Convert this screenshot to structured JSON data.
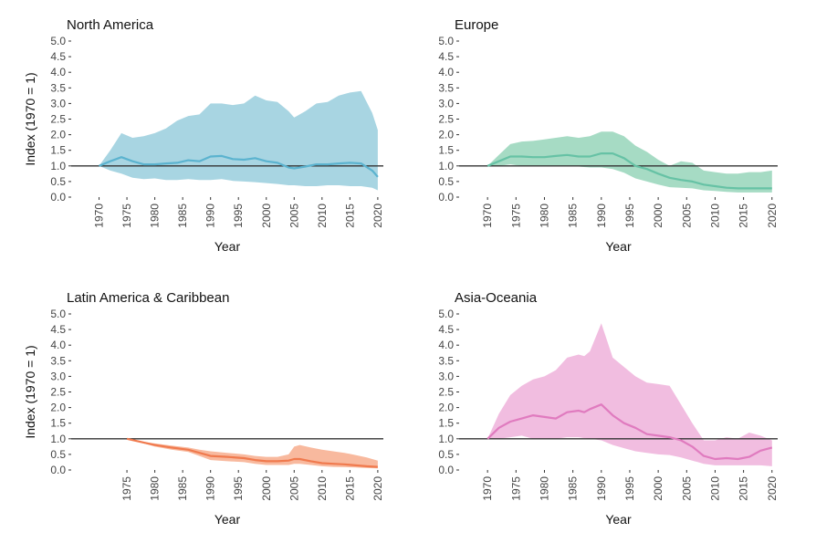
{
  "chart_data": [
    {
      "type": "area",
      "title": "North America",
      "xlabel": "Year",
      "ylabel": "Index (1970 = 1)",
      "xlim": [
        1965,
        2021
      ],
      "ylim": [
        0,
        5
      ],
      "xticks": [
        "1970",
        "1975",
        "1980",
        "1985",
        "1990",
        "1995",
        "2000",
        "2005",
        "2010",
        "2015",
        "2020"
      ],
      "yticks": [
        "0.0",
        "0.5",
        "1.0",
        "1.5",
        "2.0",
        "2.5",
        "3.0",
        "3.5",
        "4.0",
        "4.5",
        "5.0"
      ],
      "reference_line": 1,
      "color": "#5bb3cf",
      "band_color": "#a8d5e2",
      "x": [
        1970,
        1972,
        1974,
        1976,
        1978,
        1980,
        1982,
        1984,
        1986,
        1988,
        1990,
        1992,
        1994,
        1996,
        1998,
        2000,
        2002,
        2004,
        2005,
        2007,
        2009,
        2011,
        2013,
        2015,
        2017,
        2019,
        2020
      ],
      "values": [
        1.0,
        1.15,
        1.28,
        1.15,
        1.05,
        1.05,
        1.08,
        1.1,
        1.18,
        1.15,
        1.3,
        1.32,
        1.22,
        1.2,
        1.25,
        1.15,
        1.1,
        0.95,
        0.92,
        0.98,
        1.05,
        1.05,
        1.08,
        1.1,
        1.08,
        0.85,
        0.65
      ],
      "upper": [
        1.0,
        1.5,
        2.05,
        1.9,
        1.95,
        2.05,
        2.2,
        2.45,
        2.6,
        2.65,
        3.0,
        3.0,
        2.95,
        3.0,
        3.25,
        3.1,
        3.05,
        2.75,
        2.55,
        2.75,
        3.0,
        3.05,
        3.25,
        3.35,
        3.4,
        2.7,
        2.15
      ],
      "lower": [
        1.0,
        0.85,
        0.75,
        0.62,
        0.58,
        0.6,
        0.55,
        0.55,
        0.58,
        0.55,
        0.55,
        0.58,
        0.52,
        0.5,
        0.48,
        0.45,
        0.42,
        0.38,
        0.38,
        0.35,
        0.35,
        0.38,
        0.38,
        0.35,
        0.35,
        0.3,
        0.22
      ]
    },
    {
      "type": "area",
      "title": "Europe",
      "xlabel": "Year",
      "ylabel": "",
      "xlim": [
        1965,
        2021
      ],
      "ylim": [
        0,
        5
      ],
      "xticks": [
        "1970",
        "1975",
        "1980",
        "1985",
        "1990",
        "1995",
        "2000",
        "2005",
        "2010",
        "2015",
        "2020"
      ],
      "yticks": [
        "0.0",
        "0.5",
        "1.0",
        "1.5",
        "2.0",
        "2.5",
        "3.0",
        "3.5",
        "4.0",
        "4.5",
        "5.0"
      ],
      "reference_line": 1,
      "color": "#66c2a5",
      "band_color": "#a6dbc4",
      "x": [
        1970,
        1972,
        1974,
        1976,
        1978,
        1980,
        1982,
        1984,
        1986,
        1988,
        1990,
        1992,
        1994,
        1996,
        1998,
        2000,
        2002,
        2004,
        2006,
        2008,
        2010,
        2012,
        2014,
        2016,
        2018,
        2020
      ],
      "values": [
        1.0,
        1.15,
        1.3,
        1.3,
        1.28,
        1.28,
        1.32,
        1.35,
        1.3,
        1.3,
        1.4,
        1.4,
        1.25,
        1.0,
        0.9,
        0.75,
        0.62,
        0.55,
        0.5,
        0.4,
        0.35,
        0.3,
        0.28,
        0.28,
        0.28,
        0.28
      ],
      "upper": [
        1.0,
        1.35,
        1.7,
        1.78,
        1.8,
        1.85,
        1.9,
        1.95,
        1.9,
        1.95,
        2.1,
        2.1,
        1.95,
        1.65,
        1.45,
        1.2,
        1.0,
        1.15,
        1.1,
        0.85,
        0.8,
        0.75,
        0.75,
        0.8,
        0.8,
        0.85
      ],
      "lower": [
        1.0,
        1.0,
        1.05,
        1.0,
        0.98,
        0.98,
        1.0,
        1.0,
        0.98,
        0.95,
        0.95,
        0.9,
        0.78,
        0.6,
        0.5,
        0.4,
        0.32,
        0.3,
        0.28,
        0.22,
        0.2,
        0.17,
        0.15,
        0.15,
        0.15,
        0.15
      ]
    },
    {
      "type": "area",
      "title": "Latin America & Caribbean",
      "xlabel": "Year",
      "ylabel": "Index (1970 = 1)",
      "xlim": [
        1965,
        2021
      ],
      "ylim": [
        0,
        5
      ],
      "xticks": [
        "1975",
        "1980",
        "1985",
        "1990",
        "1995",
        "2000",
        "2005",
        "2010",
        "2015",
        "2020"
      ],
      "yticks": [
        "0.0",
        "0.5",
        "1.0",
        "1.5",
        "2.0",
        "2.5",
        "3.0",
        "3.5",
        "4.0",
        "4.5",
        "5.0"
      ],
      "reference_line": 1,
      "color": "#f07a4e",
      "band_color": "#f8b99e",
      "x": [
        1975,
        1978,
        1980,
        1983,
        1986,
        1988,
        1990,
        1993,
        1996,
        1998,
        2000,
        2002,
        2004,
        2005,
        2006,
        2008,
        2010,
        2012,
        2014,
        2016,
        2018,
        2020
      ],
      "values": [
        1.0,
        0.88,
        0.8,
        0.72,
        0.65,
        0.55,
        0.45,
        0.42,
        0.38,
        0.32,
        0.28,
        0.28,
        0.3,
        0.35,
        0.35,
        0.28,
        0.22,
        0.2,
        0.18,
        0.15,
        0.12,
        0.1
      ],
      "upper": [
        1.0,
        0.9,
        0.85,
        0.78,
        0.72,
        0.65,
        0.6,
        0.55,
        0.5,
        0.45,
        0.42,
        0.42,
        0.5,
        0.75,
        0.8,
        0.72,
        0.65,
        0.6,
        0.55,
        0.48,
        0.4,
        0.3
      ],
      "lower": [
        1.0,
        0.85,
        0.75,
        0.65,
        0.58,
        0.45,
        0.32,
        0.28,
        0.25,
        0.2,
        0.16,
        0.16,
        0.16,
        0.2,
        0.2,
        0.16,
        0.12,
        0.1,
        0.09,
        0.08,
        0.06,
        0.05
      ]
    },
    {
      "type": "area",
      "title": "Asia-Oceania",
      "xlabel": "Year",
      "ylabel": "",
      "xlim": [
        1965,
        2021
      ],
      "ylim": [
        0,
        5
      ],
      "xticks": [
        "1970",
        "1975",
        "1980",
        "1985",
        "1990",
        "1995",
        "2000",
        "2005",
        "2010",
        "2015",
        "2020"
      ],
      "yticks": [
        "0.0",
        "0.5",
        "1.0",
        "1.5",
        "2.0",
        "2.5",
        "3.0",
        "3.5",
        "4.0",
        "4.5",
        "5.0"
      ],
      "reference_line": 1,
      "color": "#e07bbf",
      "band_color": "#f1bde0",
      "x": [
        1970,
        1972,
        1974,
        1976,
        1978,
        1980,
        1982,
        1984,
        1986,
        1987,
        1988,
        1990,
        1992,
        1994,
        1996,
        1998,
        2000,
        2002,
        2004,
        2006,
        2008,
        2010,
        2012,
        2014,
        2016,
        2018,
        2020
      ],
      "values": [
        1.0,
        1.35,
        1.55,
        1.65,
        1.75,
        1.7,
        1.65,
        1.85,
        1.9,
        1.85,
        1.95,
        2.1,
        1.75,
        1.5,
        1.35,
        1.15,
        1.1,
        1.05,
        0.95,
        0.75,
        0.45,
        0.35,
        0.38,
        0.35,
        0.42,
        0.62,
        0.72
      ],
      "upper": [
        1.0,
        1.8,
        2.4,
        2.7,
        2.9,
        3.0,
        3.2,
        3.6,
        3.7,
        3.65,
        3.8,
        4.7,
        3.6,
        3.3,
        3.0,
        2.8,
        2.75,
        2.7,
        2.1,
        1.5,
        0.95,
        0.95,
        1.05,
        1.0,
        1.2,
        1.1,
        0.95
      ],
      "lower": [
        1.0,
        1.0,
        1.05,
        1.1,
        1.0,
        1.0,
        1.0,
        1.05,
        1.05,
        1.02,
        1.0,
        0.95,
        0.8,
        0.7,
        0.6,
        0.55,
        0.5,
        0.48,
        0.4,
        0.3,
        0.2,
        0.15,
        0.15,
        0.15,
        0.15,
        0.15,
        0.12
      ]
    }
  ]
}
